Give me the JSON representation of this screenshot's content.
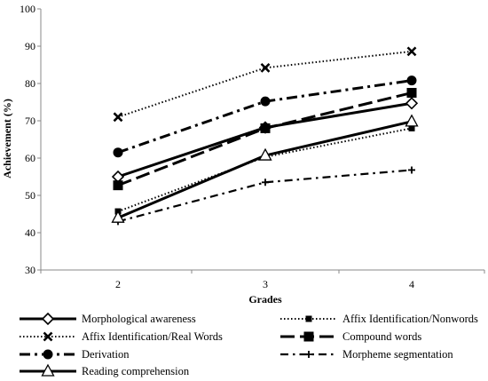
{
  "chart_data": {
    "type": "line",
    "xlabel": "Grades",
    "ylabel": "Achievement (%)",
    "x": [
      2,
      3,
      4
    ],
    "x_tick_labels": [
      "2",
      "3",
      "4"
    ],
    "ylim": [
      30,
      100
    ],
    "y_ticks": [
      30,
      40,
      50,
      60,
      70,
      80,
      90,
      100
    ],
    "grid": false,
    "legend_position": "bottom",
    "series": [
      {
        "name": "Morphological awareness",
        "values": [
          55,
          68.2,
          74.7
        ],
        "style": "solid",
        "marker": "diamond"
      },
      {
        "name": "Affix Identification/Nonwords",
        "values": [
          45.7,
          60.3,
          68
        ],
        "style": "dotted",
        "marker": "square-small"
      },
      {
        "name": "Affix Identification/Real Words",
        "values": [
          71,
          84.2,
          88.6
        ],
        "style": "dotted",
        "marker": "x"
      },
      {
        "name": "Compound words",
        "values": [
          52.7,
          68,
          77.5
        ],
        "style": "longdash",
        "marker": "square"
      },
      {
        "name": "Derivation",
        "values": [
          61.5,
          75.2,
          80.8
        ],
        "style": "dashdot",
        "marker": "circle"
      },
      {
        "name": "Morpheme segmentation",
        "values": [
          43,
          53.5,
          56.8
        ],
        "style": "dashdot-thin",
        "marker": "plus"
      },
      {
        "name": "Reading comprehension",
        "values": [
          44,
          60.7,
          69.8
        ],
        "style": "solid",
        "marker": "triangle"
      }
    ]
  }
}
